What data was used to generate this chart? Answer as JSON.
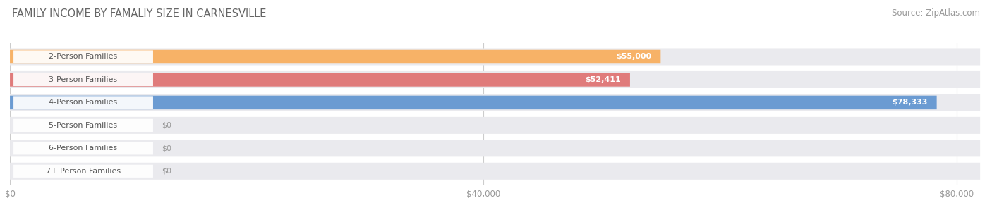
{
  "title": "FAMILY INCOME BY FAMALIY SIZE IN CARNESVILLE",
  "source": "Source: ZipAtlas.com",
  "categories": [
    "2-Person Families",
    "3-Person Families",
    "4-Person Families",
    "5-Person Families",
    "6-Person Families",
    "7+ Person Families"
  ],
  "values": [
    55000,
    52411,
    78333,
    0,
    0,
    0
  ],
  "bar_colors": [
    "#F7B267",
    "#E07B7B",
    "#6B9BD2",
    "#C4A8D4",
    "#6EC6C0",
    "#A8B4E0"
  ],
  "bar_bg_color": "#EAEAEE",
  "background_color": "#FFFFFF",
  "xlim_max": 82000,
  "xticks": [
    0,
    40000,
    80000
  ],
  "xtick_labels": [
    "$0",
    "$40,000",
    "$80,000"
  ],
  "value_labels": [
    "$55,000",
    "$52,411",
    "$78,333",
    "$0",
    "$0",
    "$0"
  ],
  "title_fontsize": 10.5,
  "source_fontsize": 8.5,
  "tick_fontsize": 8.5,
  "bar_label_fontsize": 8,
  "category_fontsize": 8
}
